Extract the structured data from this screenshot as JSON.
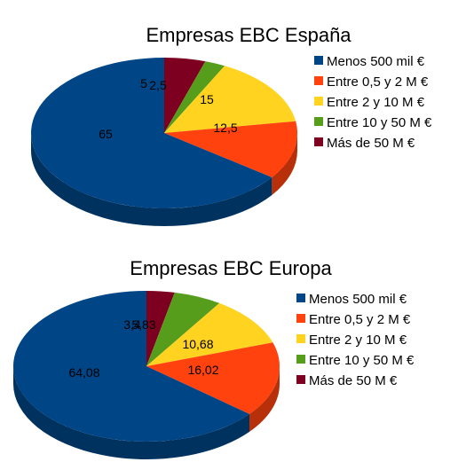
{
  "chart_data": [
    {
      "type": "pie",
      "title": "Empresas EBC España",
      "categories": [
        "Menos 500 mil €",
        "Entre 0,5 y 2 M €",
        "Entre 2 y 10 M €",
        "Entre 10 y 50 M €",
        "Más de 50 M €"
      ],
      "values": [
        65,
        12.5,
        15,
        2.5,
        5
      ],
      "value_labels": [
        "65",
        "12,5",
        "15",
        "2,5",
        "5"
      ],
      "colors": [
        "#004586",
        "#ff420e",
        "#ffd320",
        "#579d1c",
        "#7e0021"
      ],
      "style": "3d",
      "legend_position": "right"
    },
    {
      "type": "pie",
      "title": "Empresas EBC Europa",
      "categories": [
        "Menos 500 mil €",
        "Entre 0,5 y 2 M €",
        "Entre 2 y 10 M €",
        "Entre 10 y 50 M €",
        "Más de 50 M €"
      ],
      "values": [
        64.08,
        16.02,
        10.68,
        5.83,
        3.4
      ],
      "value_labels": [
        "64,08",
        "16,02",
        "10,68",
        "5,83",
        "3,4"
      ],
      "colors": [
        "#004586",
        "#ff420e",
        "#ffd320",
        "#579d1c",
        "#7e0021"
      ],
      "style": "3d",
      "legend_position": "right"
    }
  ]
}
